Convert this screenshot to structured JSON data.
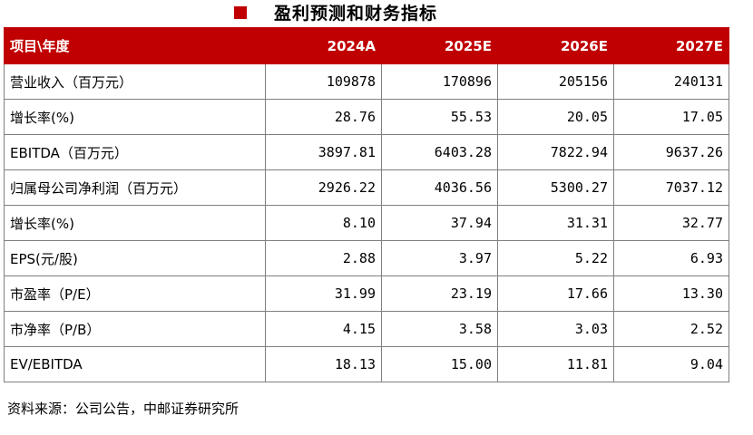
{
  "title": "盈利预测和财务指标",
  "table": {
    "header_label": "项目\\年度",
    "years": [
      "2024A",
      "2025E",
      "2026E",
      "2027E"
    ],
    "rows": [
      {
        "label": "营业收入（百万元）",
        "values": [
          "109878",
          "170896",
          "205156",
          "240131"
        ]
      },
      {
        "label": "增长率(%)",
        "values": [
          "28.76",
          "55.53",
          "20.05",
          "17.05"
        ]
      },
      {
        "label": "EBITDA（百万元）",
        "values": [
          "3897.81",
          "6403.28",
          "7822.94",
          "9637.26"
        ]
      },
      {
        "label": "归属母公司净利润（百万元）",
        "values": [
          "2926.22",
          "4036.56",
          "5300.27",
          "7037.12"
        ]
      },
      {
        "label": "增长率(%)",
        "values": [
          "8.10",
          "37.94",
          "31.31",
          "32.77"
        ]
      },
      {
        "label": "EPS(元/股)",
        "values": [
          "2.88",
          "3.97",
          "5.22",
          "6.93"
        ]
      },
      {
        "label": "市盈率（P/E）",
        "values": [
          "31.99",
          "23.19",
          "17.66",
          "13.30"
        ]
      },
      {
        "label": "市净率（P/B）",
        "values": [
          "4.15",
          "3.58",
          "3.03",
          "2.52"
        ]
      },
      {
        "label": "EV/EBITDA",
        "values": [
          "18.13",
          "15.00",
          "11.81",
          "9.04"
        ]
      }
    ]
  },
  "source": "资料来源：公司公告，中邮证券研究所",
  "colors": {
    "accent": "#c00000",
    "header_text": "#ffffff",
    "border": "#7f7f7f"
  }
}
